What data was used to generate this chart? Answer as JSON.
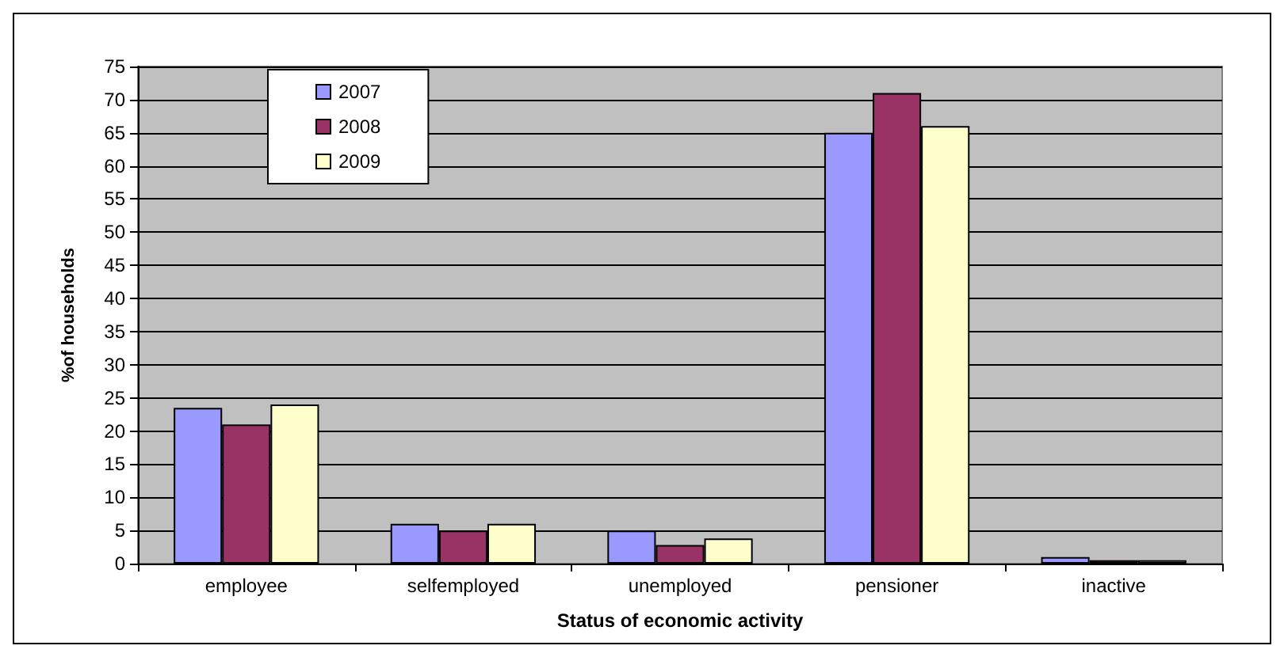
{
  "chart_data": {
    "type": "bar",
    "xlabel": "Status of economic activity",
    "ylabel": "%of households",
    "categories": [
      "employee",
      "selfemployed",
      "unemployed",
      "pensioner",
      "inactive"
    ],
    "series": [
      {
        "name": "2007",
        "color": "#9999ff",
        "values": [
          23.5,
          6,
          5,
          65,
          1
        ]
      },
      {
        "name": "2008",
        "color": "#993366",
        "values": [
          21,
          5,
          2.8,
          71,
          0.5
        ]
      },
      {
        "name": "2009",
        "color": "#ffffcc",
        "values": [
          24,
          6,
          3.8,
          66,
          0.5
        ]
      }
    ],
    "ylim": [
      0,
      75
    ],
    "yticks": [
      0,
      5,
      10,
      15,
      20,
      25,
      30,
      35,
      40,
      45,
      50,
      55,
      60,
      65,
      70,
      75
    ],
    "grid": "y",
    "legend": "top left"
  }
}
